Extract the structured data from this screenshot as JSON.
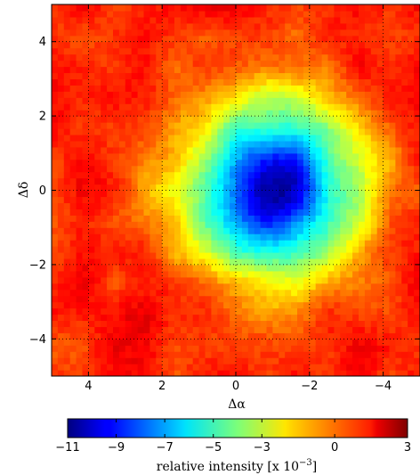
{
  "chart_data": {
    "type": "heatmap",
    "title": "",
    "xlabel": "Δα",
    "ylabel": "Δδ",
    "xlim": [
      5,
      -5
    ],
    "ylim": [
      -5,
      5
    ],
    "x_reversed": true,
    "x_ticks": [
      4,
      2,
      0,
      -2,
      -4
    ],
    "x_tick_labels": [
      "4",
      "2",
      "0",
      "−2",
      "−4"
    ],
    "y_ticks": [
      4,
      2,
      0,
      -2,
      -4
    ],
    "y_tick_labels": [
      "4",
      "2",
      "0",
      "−2",
      "−4"
    ],
    "grid": true,
    "grid_style": "dotted",
    "colormap": "jet",
    "colorbar": {
      "label_main": "relative intensity [x 10",
      "label_exp": "−3",
      "label_end": "]",
      "vmin": -11,
      "vmax": 3,
      "ticks": [
        -11,
        -9,
        -7,
        -5,
        -3,
        0,
        3
      ],
      "tick_labels": [
        "−11",
        "−9",
        "−7",
        "−5",
        "−3",
        "0",
        "3"
      ],
      "orientation": "horizontal",
      "placement": "bottom"
    },
    "features": [
      {
        "kind": "minimum",
        "x": -1.0,
        "y": 0.0,
        "value": -11,
        "sigma": 1.35
      },
      {
        "background": 0.8
      }
    ]
  }
}
